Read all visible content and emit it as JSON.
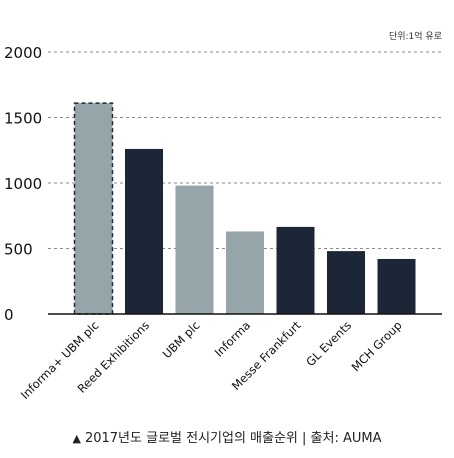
{
  "chart_data": {
    "type": "bar",
    "unit_label": "단위:1억 유로",
    "categories": [
      "Informa+ UBM plc",
      "Reed Exhibitions",
      "UBM plc",
      "Informa",
      "Messe Frankfurt",
      "GL Events",
      "MCH Group"
    ],
    "values": [
      1610,
      1260,
      980,
      630,
      665,
      480,
      420
    ],
    "bar_colors": [
      "#95a5a9",
      "#1d2637",
      "#95a5a9",
      "#95a5a9",
      "#1d2637",
      "#1d2637",
      "#1d2637"
    ],
    "highlight_index": 0,
    "highlight_style": "dashed-outline",
    "highlight_color": "#1d2637",
    "y_ticks": [
      0,
      500,
      1000,
      1500,
      2000
    ],
    "ylim": [
      0,
      2000
    ],
    "grid": "dashed horizontal"
  },
  "caption": {
    "marker": "▲",
    "text": "2017년도 글로벌 전시기업의 매출순위 | 출처: AUMA"
  }
}
